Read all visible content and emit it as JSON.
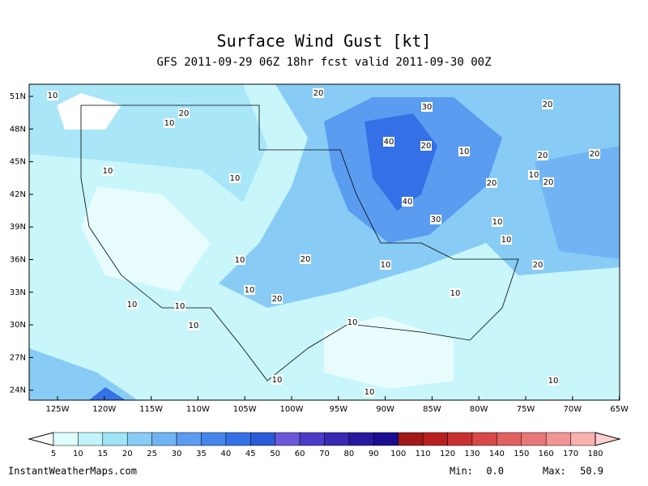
{
  "header": {
    "title": "Surface Wind Gust [kt]",
    "subtitle": "GFS 2011-09-29 06Z 18hr fcst valid 2011-09-30 00Z"
  },
  "map": {
    "lat_labels": [
      "51N",
      "48N",
      "45N",
      "42N",
      "39N",
      "36N",
      "33N",
      "30N",
      "27N",
      "24N"
    ],
    "lon_labels": [
      "125W",
      "120W",
      "115W",
      "110W",
      "105W",
      "100W",
      "95W",
      "90W",
      "85W",
      "80W",
      "75W",
      "70W",
      "65W"
    ],
    "contour_labels": [
      "10",
      "20",
      "20",
      "10",
      "30",
      "20",
      "40",
      "20",
      "10",
      "20",
      "20",
      "10",
      "10",
      "10",
      "20",
      "20",
      "40",
      "30",
      "10",
      "10",
      "10",
      "20",
      "10",
      "20",
      "10",
      "20",
      "10",
      "10",
      "10",
      "10",
      "10",
      "10",
      "10",
      "10"
    ]
  },
  "colorbar": {
    "levels": [
      "5",
      "10",
      "15",
      "20",
      "25",
      "30",
      "35",
      "40",
      "45",
      "50",
      "60",
      "70",
      "80",
      "90",
      "100",
      "110",
      "120",
      "130",
      "140",
      "150",
      "160",
      "170",
      "180"
    ],
    "colors": [
      "#ffffff",
      "#e0ffff",
      "#c0f4fa",
      "#a0e4f8",
      "#88ccf6",
      "#70b4f4",
      "#5a9cf0",
      "#4686ec",
      "#3470e6",
      "#2a5ad8",
      "#6a58d8",
      "#4a3cc8",
      "#3828b4",
      "#2818a0",
      "#1c0c90",
      "#a01818",
      "#b82020",
      "#c83030",
      "#d84848",
      "#e06060",
      "#e87878",
      "#f09494",
      "#f8b0b0",
      "#ffd0d0"
    ]
  },
  "footer": {
    "source": "InstantWeatherMaps.com",
    "min_label": "Min:",
    "min": "0.0",
    "max_label": "Max:",
    "max": "50.9"
  }
}
